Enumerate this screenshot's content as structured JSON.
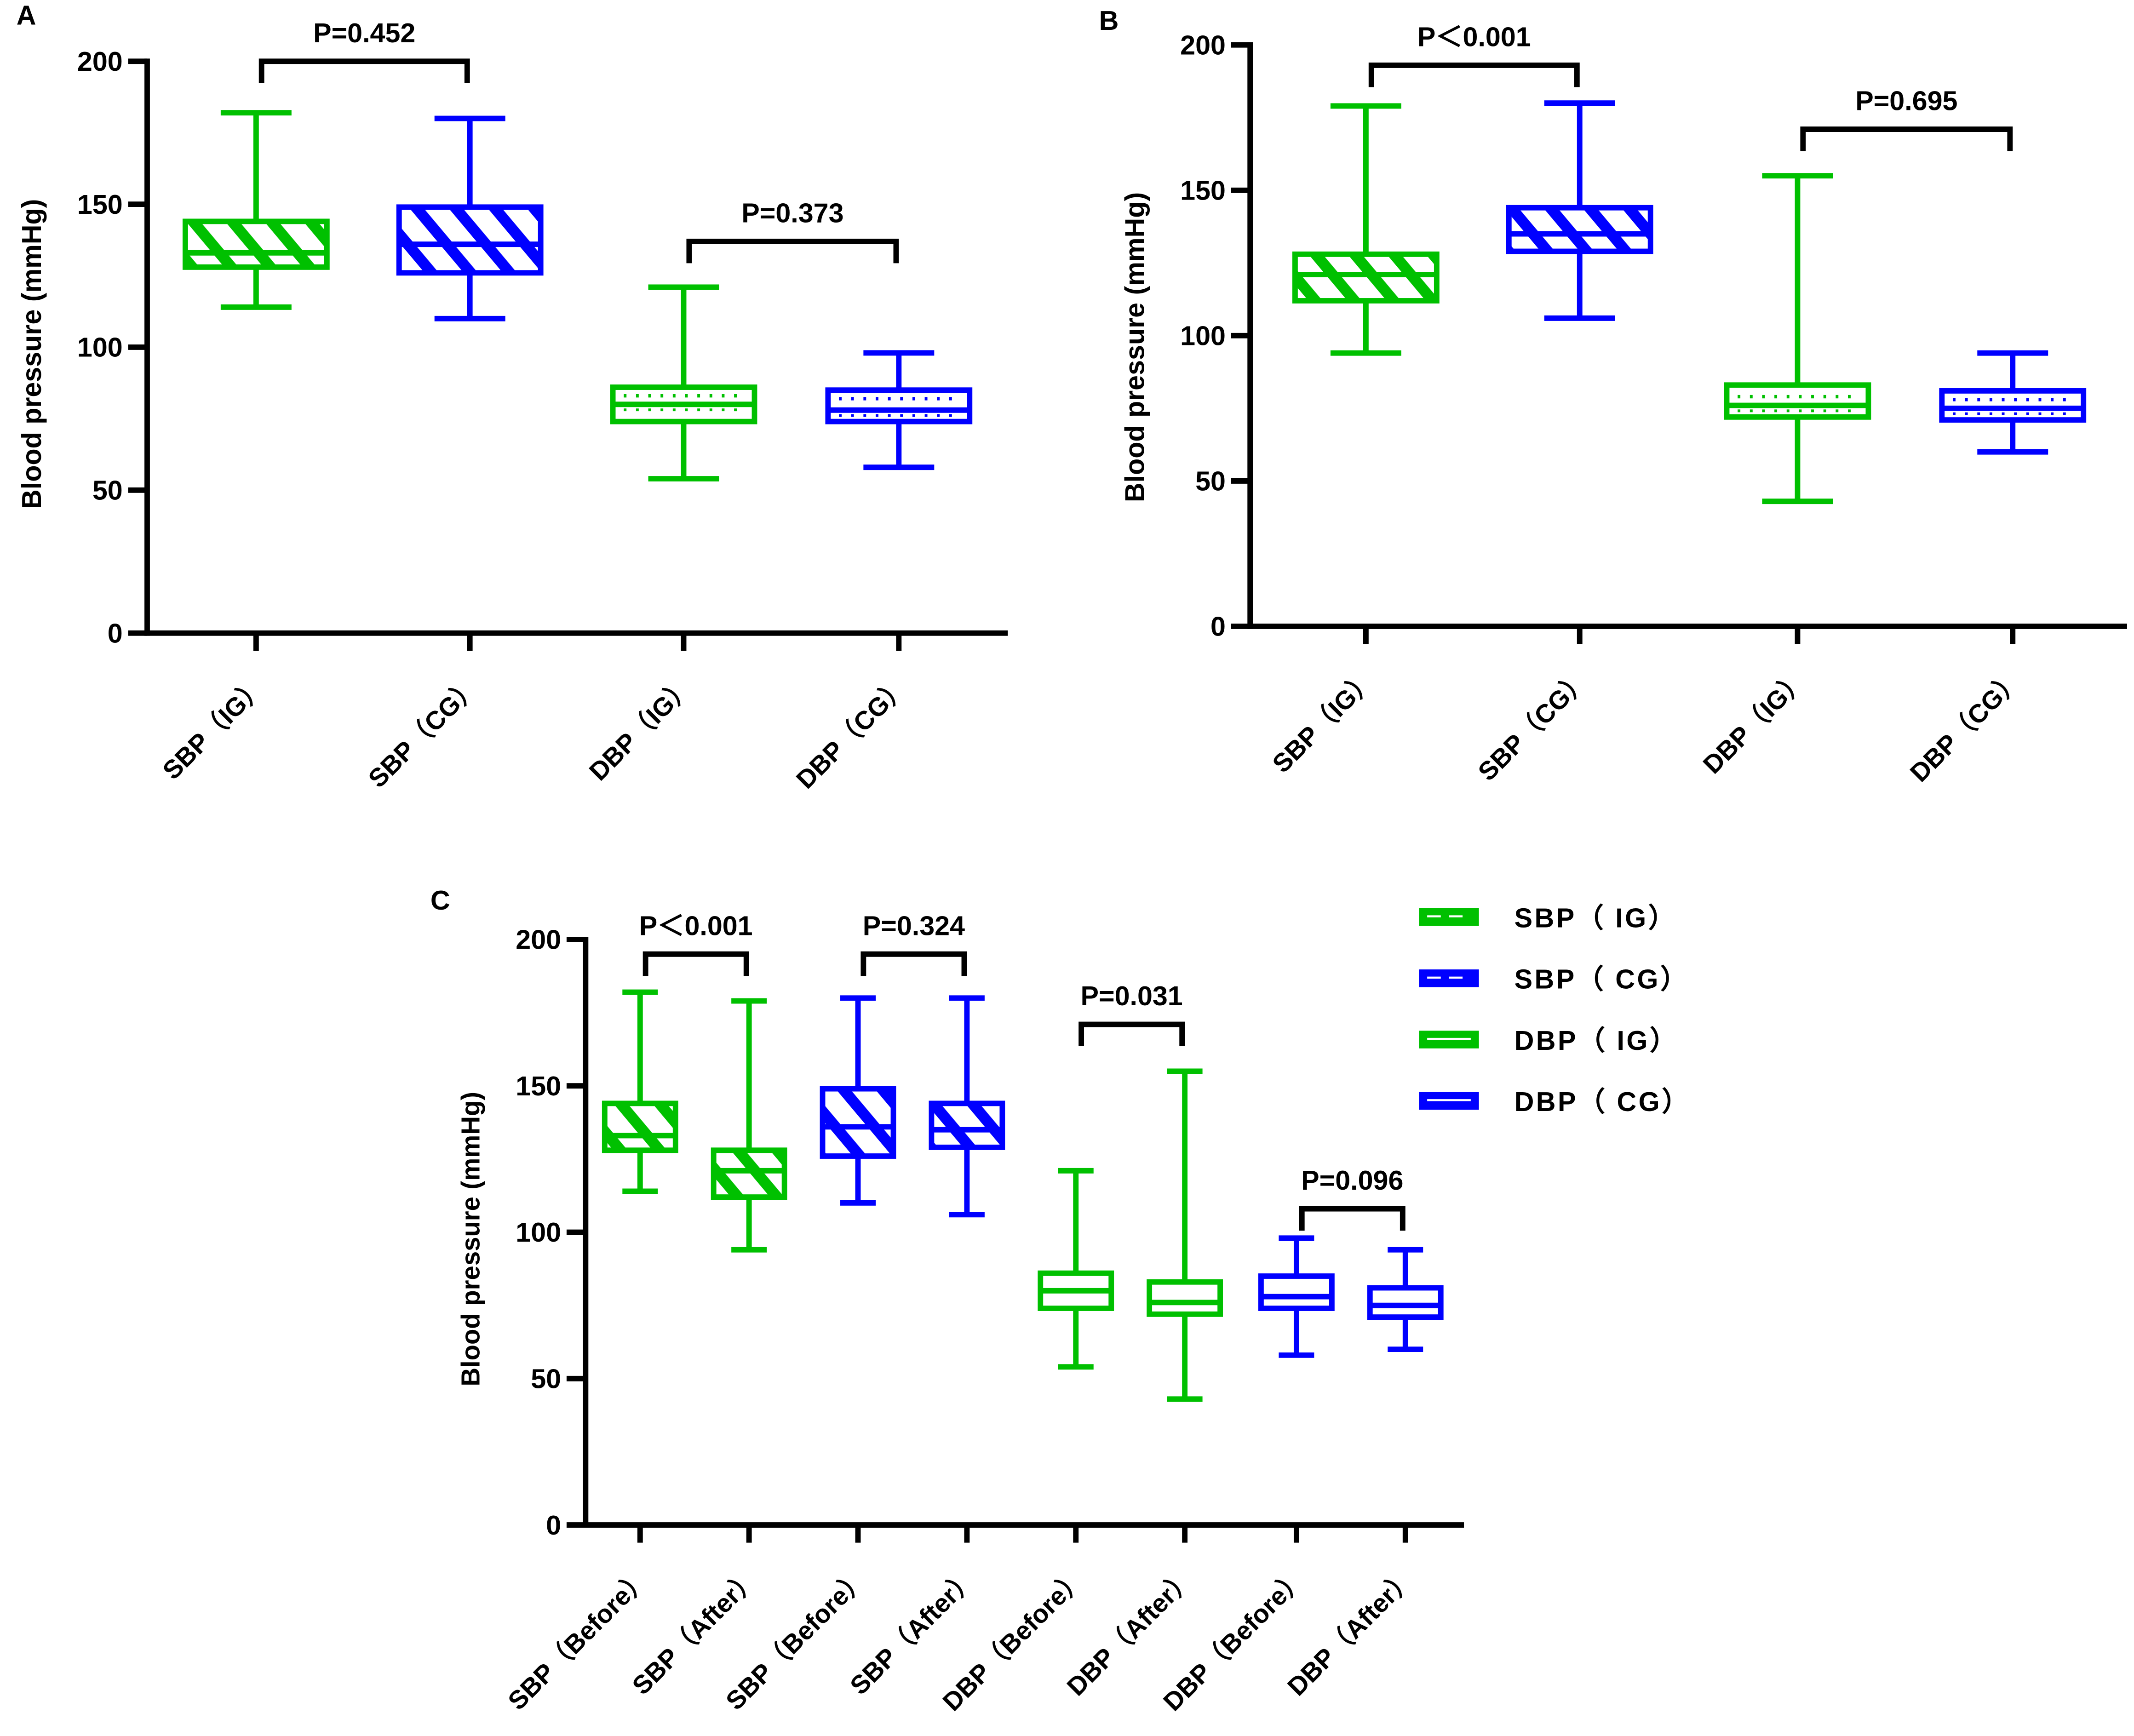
{
  "colors": {
    "ig": "#00c000",
    "cg": "#0000ff",
    "axis": "#000000"
  },
  "chart_data": [
    {
      "panel": "A",
      "type": "box",
      "ylabel": "Blood pressure (mmHg)",
      "ylim": [
        0,
        200
      ],
      "yticks": [
        0,
        50,
        100,
        150,
        200
      ],
      "categories": [
        "SBP（IG）",
        "SBP（CG）",
        "DBP（IG）",
        "DBP（CG）"
      ],
      "boxes": [
        {
          "group": "ig",
          "kind": "SBP",
          "min": 114,
          "q1": 128,
          "median": 133,
          "q3": 144,
          "max": 182
        },
        {
          "group": "cg",
          "kind": "SBP",
          "min": 110,
          "q1": 126,
          "median": 136,
          "q3": 149,
          "max": 180
        },
        {
          "group": "ig",
          "kind": "DBP",
          "min": 54,
          "q1": 74,
          "median": 80,
          "q3": 86,
          "max": 121,
          "mean": 83
        },
        {
          "group": "cg",
          "kind": "DBP",
          "min": 58,
          "q1": 74,
          "median": 78,
          "q3": 85,
          "max": 98,
          "mean": 82
        }
      ],
      "comparisons": [
        {
          "from": 0,
          "to": 1,
          "label": "P=0.452",
          "level": 200
        },
        {
          "from": 2,
          "to": 3,
          "label": "P=0.373",
          "level": 137
        }
      ]
    },
    {
      "panel": "B",
      "type": "box",
      "ylabel": "Blood pressure (mmHg)",
      "ylim": [
        0,
        200
      ],
      "yticks": [
        0,
        50,
        100,
        150,
        200
      ],
      "categories": [
        "SBP（IG）",
        "SBP（CG）",
        "DBP（IG）",
        "DBP（CG）"
      ],
      "boxes": [
        {
          "group": "ig",
          "kind": "SBP",
          "min": 94,
          "q1": 112,
          "median": 121,
          "q3": 128,
          "max": 179
        },
        {
          "group": "cg",
          "kind": "SBP",
          "min": 106,
          "q1": 129,
          "median": 135,
          "q3": 144,
          "max": 180
        },
        {
          "group": "ig",
          "kind": "DBP",
          "min": 43,
          "q1": 72,
          "median": 76,
          "q3": 83,
          "max": 155,
          "mean": 79
        },
        {
          "group": "cg",
          "kind": "DBP",
          "min": 60,
          "q1": 71,
          "median": 75,
          "q3": 81,
          "max": 94,
          "mean": 78
        }
      ],
      "comparisons": [
        {
          "from": 0,
          "to": 1,
          "label": "P＜0.001",
          "level": 193
        },
        {
          "from": 2,
          "to": 3,
          "label": "P=0.695",
          "level": 171
        }
      ]
    },
    {
      "panel": "C",
      "type": "box",
      "ylabel": "Blood pressure (mmHg)",
      "ylim": [
        0,
        200
      ],
      "yticks": [
        0,
        50,
        100,
        150,
        200
      ],
      "categories": [
        "SBP（Before）",
        "SBP（After）",
        "SBP（Before）",
        "SBP（After）",
        "DBP（Before）",
        "DBP（After）",
        "DBP（Before）",
        "DBP（After）"
      ],
      "boxes": [
        {
          "group": "ig",
          "kind": "SBP",
          "min": 114,
          "q1": 128,
          "median": 133,
          "q3": 144,
          "max": 182
        },
        {
          "group": "ig",
          "kind": "SBP",
          "min": 94,
          "q1": 112,
          "median": 121,
          "q3": 128,
          "max": 179
        },
        {
          "group": "cg",
          "kind": "SBP",
          "min": 110,
          "q1": 126,
          "median": 136,
          "q3": 149,
          "max": 180
        },
        {
          "group": "cg",
          "kind": "SBP",
          "min": 106,
          "q1": 129,
          "median": 135,
          "q3": 144,
          "max": 180
        },
        {
          "group": "ig",
          "kind": "DBP",
          "min": 54,
          "q1": 74,
          "median": 80,
          "q3": 86,
          "max": 121
        },
        {
          "group": "ig",
          "kind": "DBP",
          "min": 43,
          "q1": 72,
          "median": 76,
          "q3": 83,
          "max": 155
        },
        {
          "group": "cg",
          "kind": "DBP",
          "min": 58,
          "q1": 74,
          "median": 78,
          "q3": 85,
          "max": 98
        },
        {
          "group": "cg",
          "kind": "DBP",
          "min": 60,
          "q1": 71,
          "median": 75,
          "q3": 81,
          "max": 94
        }
      ],
      "comparisons": [
        {
          "from": 0,
          "to": 1,
          "label": "P＜0.001",
          "level": 195
        },
        {
          "from": 2,
          "to": 3,
          "label": "P=0.324",
          "level": 195
        },
        {
          "from": 4,
          "to": 5,
          "label": "P=0.031",
          "level": 171
        },
        {
          "from": 6,
          "to": 7,
          "label": "P=0.096",
          "level": 108
        }
      ],
      "legend": {
        "placement": "right",
        "entries": [
          {
            "label": "SBP（ IG）",
            "group": "ig",
            "kind": "SBP"
          },
          {
            "label": "SBP（ CG）",
            "group": "cg",
            "kind": "SBP"
          },
          {
            "label": "DBP（ IG）",
            "group": "ig",
            "kind": "DBP"
          },
          {
            "label": "DBP（ CG）",
            "group": "cg",
            "kind": "DBP"
          }
        ]
      }
    }
  ]
}
